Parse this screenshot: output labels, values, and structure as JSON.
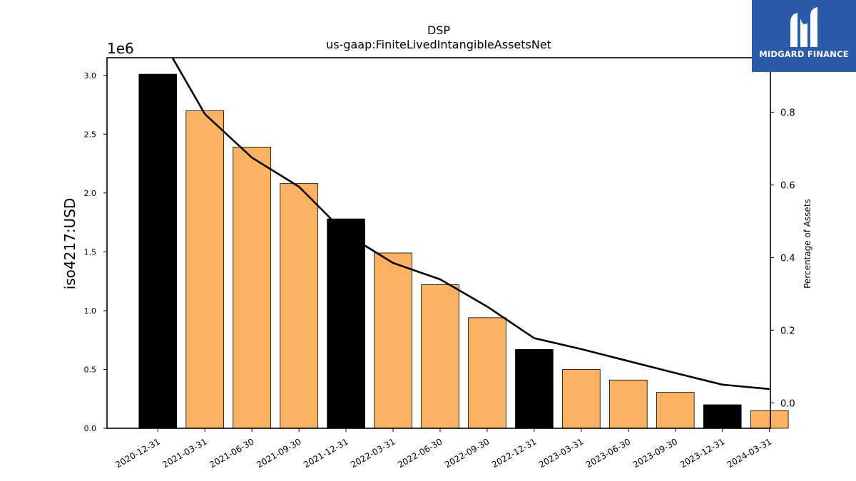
{
  "chart_data": {
    "type": "bar",
    "title": "DSP",
    "subtitle": "us-gaap:FiniteLivedIntangibleAssetsNet",
    "ylabel": "iso4217:USD",
    "y_offset_label": "1e6",
    "y2label": "Percentage of Assets",
    "ylim": [
      0,
      3150000
    ],
    "y2lim": [
      -0.07,
      0.95
    ],
    "yticks": [
      0.0,
      0.5,
      1.0,
      1.5,
      2.0,
      2.5,
      3.0
    ],
    "y2ticks": [
      0.0,
      0.2,
      0.4,
      0.6,
      0.8
    ],
    "categories": [
      "2020-12-31",
      "2021-03-31",
      "2021-06-30",
      "2021-09-30",
      "2021-12-31",
      "2022-03-31",
      "2022-06-30",
      "2022-09-30",
      "2022-12-31",
      "2023-03-31",
      "2023-06-30",
      "2023-09-30",
      "2023-12-31",
      "2024-03-31"
    ],
    "values": [
      3010000,
      2700000,
      2390000,
      2080000,
      1780000,
      1490000,
      1220000,
      940000,
      670000,
      500000,
      410000,
      305000,
      200000,
      150000
    ],
    "annual_colors": [
      "#000000",
      "#fbb262",
      "#fbb262",
      "#fbb262",
      "#000000",
      "#fbb262",
      "#fbb262",
      "#fbb262",
      "#000000",
      "#fbb262",
      "#fbb262",
      "#fbb262",
      "#000000",
      "#fbb262"
    ],
    "series": [
      {
        "values": [
          1.02,
          0.795,
          0.675,
          0.595,
          0.465,
          0.385,
          0.34,
          0.265,
          0.178,
          0.148,
          0.115,
          0.082,
          0.05,
          0.038
        ]
      }
    ],
    "grid": false
  },
  "logo": {
    "text": "MIDGARD FINANCE",
    "color": "#2b5aa8"
  }
}
